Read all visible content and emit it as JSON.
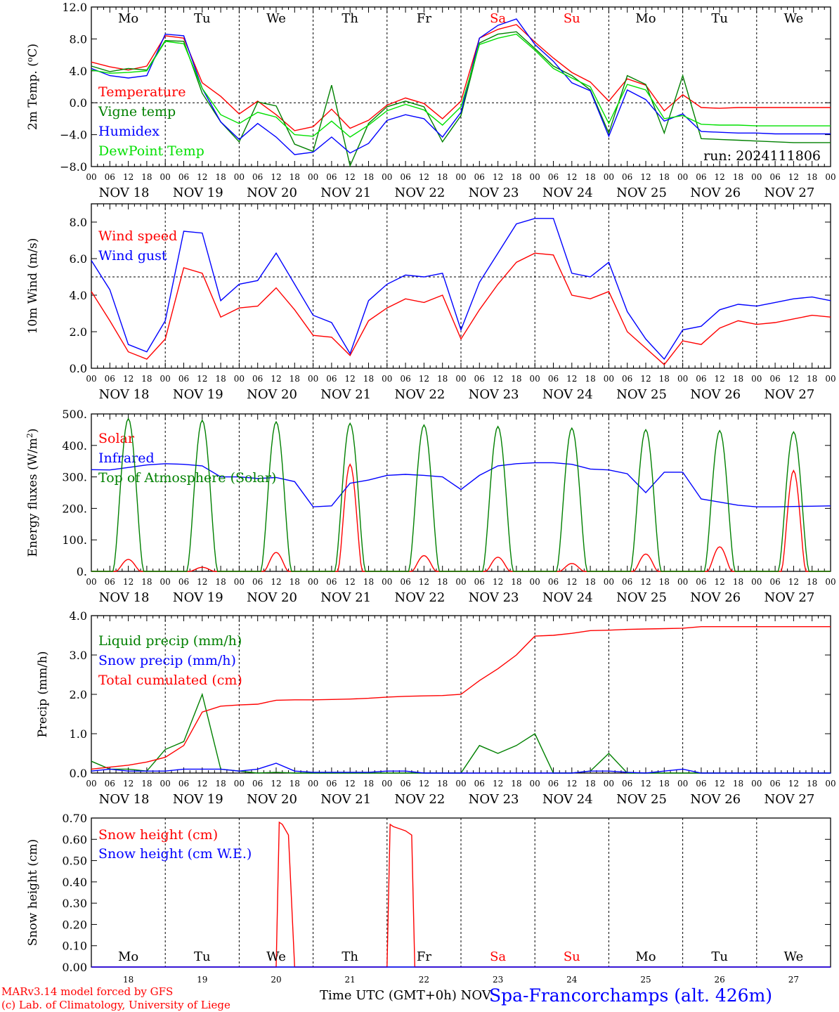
{
  "days": {
    "short": [
      "Mo",
      "Tu",
      "We",
      "Th",
      "Fr",
      "Sa",
      "Su",
      "Mo",
      "Tu",
      "We"
    ],
    "weekend_color": "#ff0000",
    "dates": [
      "NOV 18",
      "NOV 19",
      "NOV 20",
      "NOV 21",
      "NOV 22",
      "NOV 23",
      "NOV 24",
      "NOV 25",
      "NOV 26",
      "NOV 27"
    ],
    "hour_ticks": [
      "00",
      "06",
      "12",
      "18"
    ],
    "last_hour": "00",
    "bottom_numbers": [
      "18",
      "19",
      "20",
      "21",
      "22",
      "23",
      "24",
      "25",
      "26",
      "27"
    ]
  },
  "footer": {
    "credit_line1": "MARv3.14 model forced by GFS",
    "credit_line2": "(c) Lab. of Climatology, University of Liege",
    "xlabel": "Time UTC (GMT+0h)",
    "xlabel_suffix": "NOV",
    "station": "Spa-Francorchamps (alt. 426m)"
  },
  "colors": {
    "red": "#ff0000",
    "green": "#008000",
    "blue": "#0000ff",
    "lime": "#00e000"
  },
  "chart_data": [
    {
      "type": "line",
      "ylabel": "2m Temp. (°C)",
      "ylim": [
        -8,
        12
      ],
      "yticks": [
        "-8.0",
        "-4.0",
        "0.0",
        "4.0",
        "8.0",
        "12.0"
      ],
      "ref_line": 0,
      "annotation": "run: 2024111806",
      "x_hours": [
        0,
        6,
        12,
        18,
        24,
        30,
        36,
        42,
        48,
        54,
        60,
        66,
        72,
        78,
        84,
        90,
        96,
        102,
        108,
        114,
        120,
        126,
        132,
        138,
        144,
        150,
        156,
        162,
        168,
        174,
        180,
        186,
        192,
        198,
        204,
        210,
        216,
        222,
        228,
        234,
        240
      ],
      "series": [
        {
          "name": "Temperature",
          "color": "#ff0000",
          "values": [
            5.1,
            4.5,
            4.1,
            4.6,
            8.4,
            8.1,
            2.5,
            0.8,
            -1.4,
            0.2,
            -1.5,
            -3.5,
            -3.0,
            -0.8,
            -3.2,
            -2.2,
            -0.3,
            0.6,
            -0.1,
            -2.0,
            0.2,
            8.1,
            9.2,
            9.8,
            7.6,
            5.6,
            3.8,
            2.6,
            0.2,
            3.0,
            2.2,
            -1.0,
            1.0,
            -0.6,
            -0.7,
            -0.6,
            -0.6,
            -0.6,
            -0.6,
            -0.6,
            -0.6
          ]
        },
        {
          "name": "Vigne temp",
          "color": "#008000",
          "values": [
            4.6,
            3.9,
            4.3,
            4.1,
            7.8,
            7.7,
            1.2,
            -2.4,
            -4.9,
            0.1,
            -0.4,
            -5.2,
            -6.1,
            2.2,
            -7.9,
            -2.6,
            -0.5,
            0.2,
            -0.5,
            -4.9,
            -1.6,
            7.5,
            8.6,
            8.9,
            6.8,
            4.6,
            3.4,
            1.6,
            -3.8,
            3.4,
            2.3,
            -3.8,
            3.4,
            -4.5,
            -4.6,
            -4.7,
            -4.8,
            -4.9,
            -5.0,
            -5.0,
            -5.0
          ]
        },
        {
          "name": "Humidex",
          "color": "#0000ff",
          "values": [
            4.3,
            3.4,
            3.1,
            3.4,
            8.6,
            8.4,
            1.8,
            -2.4,
            -4.6,
            -2.6,
            -4.3,
            -6.5,
            -6.2,
            -4.3,
            -6.3,
            -5.1,
            -2.2,
            -1.5,
            -2.0,
            -4.3,
            -1.2,
            8.1,
            9.7,
            10.5,
            7.3,
            5.2,
            2.5,
            1.5,
            -4.2,
            1.6,
            0.4,
            -2.3,
            -1.4,
            -3.6,
            -3.7,
            -3.8,
            -3.8,
            -3.9,
            -3.9,
            -3.9,
            -3.9
          ]
        },
        {
          "name": "DewPoint Temp",
          "color": "#00e000",
          "values": [
            4.1,
            3.7,
            3.8,
            4.0,
            7.7,
            7.4,
            1.8,
            -1.5,
            -2.6,
            -1.2,
            -1.8,
            -4.0,
            -4.2,
            -2.3,
            -4.3,
            -2.8,
            -1.0,
            -0.2,
            -0.9,
            -2.8,
            -0.5,
            7.3,
            8.1,
            8.6,
            6.6,
            4.3,
            3.1,
            2.0,
            -2.6,
            2.3,
            1.6,
            -2.0,
            -1.6,
            -2.7,
            -2.8,
            -2.8,
            -2.9,
            -2.9,
            -2.9,
            -2.9,
            -2.9
          ]
        }
      ]
    },
    {
      "type": "line",
      "ylabel": "10m Wind (m/s)",
      "ylim": [
        0,
        9
      ],
      "yticks": [
        "0.0",
        "2.0",
        "4.0",
        "6.0",
        "8.0"
      ],
      "ref_line": 5,
      "x_hours": [
        0,
        6,
        12,
        18,
        24,
        30,
        36,
        42,
        48,
        54,
        60,
        66,
        72,
        78,
        84,
        90,
        96,
        102,
        108,
        114,
        120,
        126,
        132,
        138,
        144,
        150,
        156,
        162,
        168,
        174,
        180,
        186,
        192,
        198,
        204,
        210,
        216,
        222,
        228,
        234,
        240
      ],
      "series": [
        {
          "name": "Wind speed",
          "color": "#ff0000",
          "values": [
            4.2,
            2.6,
            0.9,
            0.5,
            1.6,
            5.5,
            5.2,
            2.8,
            3.3,
            3.4,
            4.4,
            3.2,
            1.8,
            1.7,
            0.7,
            2.6,
            3.3,
            3.8,
            3.6,
            4.0,
            1.6,
            3.2,
            4.6,
            5.8,
            6.3,
            6.2,
            4.0,
            3.8,
            4.2,
            2.0,
            1.1,
            0.2,
            1.5,
            1.3,
            2.2,
            2.6,
            2.4,
            2.5,
            2.7,
            2.9,
            2.8
          ]
        },
        {
          "name": "Wind gust",
          "color": "#0000ff",
          "values": [
            5.9,
            4.3,
            1.3,
            0.9,
            2.6,
            7.5,
            7.4,
            3.7,
            4.6,
            4.8,
            6.3,
            4.6,
            2.9,
            2.5,
            0.8,
            3.7,
            4.6,
            5.1,
            5.0,
            5.2,
            2.1,
            4.7,
            6.3,
            7.9,
            8.2,
            8.2,
            5.2,
            5.0,
            5.8,
            3.1,
            1.6,
            0.5,
            2.1,
            2.3,
            3.2,
            3.5,
            3.4,
            3.6,
            3.8,
            3.9,
            3.7
          ]
        }
      ]
    },
    {
      "type": "line",
      "ylabel": "Energy fluxes (W/m²)",
      "ylim": [
        0,
        500
      ],
      "yticks": [
        "0.",
        "100.",
        "200.",
        "300.",
        "400.",
        "500."
      ],
      "series": [
        {
          "name": "Solar",
          "color": "#ff0000",
          "day_peaks": [
            38,
            13,
            60,
            340,
            50,
            45,
            25,
            55,
            78,
            320
          ]
        },
        {
          "name": "Infrared",
          "color": "#0000ff",
          "x_hours": [
            0,
            6,
            12,
            18,
            24,
            30,
            36,
            42,
            48,
            54,
            60,
            66,
            72,
            78,
            84,
            90,
            96,
            102,
            108,
            114,
            120,
            126,
            132,
            138,
            144,
            150,
            156,
            162,
            168,
            174,
            180,
            186,
            192,
            198,
            204,
            210,
            216,
            222,
            228,
            234,
            240
          ],
          "values": [
            323,
            322,
            330,
            338,
            342,
            340,
            335,
            300,
            300,
            295,
            298,
            285,
            205,
            208,
            280,
            290,
            305,
            308,
            305,
            300,
            260,
            305,
            335,
            342,
            345,
            345,
            340,
            325,
            322,
            310,
            250,
            315,
            315,
            230,
            220,
            210,
            205,
            205,
            206,
            207,
            208
          ]
        },
        {
          "name": "Top of Atmosphere (Solar)",
          "color": "#008000",
          "day_peaks": [
            485,
            480,
            475,
            470,
            465,
            460,
            455,
            450,
            447,
            443
          ]
        }
      ]
    },
    {
      "type": "line",
      "ylabel": "Precip (mm/h)",
      "ylim": [
        0,
        4
      ],
      "yticks": [
        "0.0",
        "1.0",
        "2.0",
        "3.0",
        "4.0"
      ],
      "x_hours": [
        0,
        6,
        12,
        18,
        24,
        30,
        36,
        42,
        48,
        54,
        60,
        66,
        72,
        78,
        84,
        90,
        96,
        102,
        108,
        114,
        120,
        126,
        132,
        138,
        144,
        150,
        156,
        162,
        168,
        174,
        180,
        186,
        192,
        198,
        204,
        210,
        216,
        222,
        228,
        234,
        240
      ],
      "series": [
        {
          "name": "Liquid precip (mm/h)",
          "color": "#008000",
          "values": [
            0.3,
            0.1,
            0.1,
            0.05,
            0.6,
            0.8,
            2.0,
            0.1,
            0.05,
            0.0,
            0.02,
            0.0,
            0.0,
            0.0,
            0.0,
            0.0,
            0.0,
            0.0,
            0.0,
            0.0,
            0.0,
            0.7,
            0.5,
            0.7,
            1.0,
            0.0,
            0.0,
            0.05,
            0.5,
            0.0,
            0.0,
            0.0,
            0.0,
            0.0,
            0.0,
            0.0,
            0.0,
            0.0,
            0.0,
            0.0,
            0.0
          ]
        },
        {
          "name": "Snow precip (mm/h)",
          "color": "#0000ff",
          "values": [
            0.05,
            0.1,
            0.05,
            0.05,
            0.05,
            0.1,
            0.1,
            0.1,
            0.05,
            0.1,
            0.25,
            0.05,
            0.02,
            0.02,
            0.02,
            0.02,
            0.05,
            0.05,
            0.0,
            0.0,
            0.0,
            0.0,
            0.0,
            0.0,
            0.0,
            0.0,
            0.0,
            0.05,
            0.05,
            0.02,
            0.0,
            0.05,
            0.1,
            0.0,
            0.0,
            0.0,
            0.0,
            0.0,
            0.0,
            0.0,
            0.0
          ]
        },
        {
          "name": "Total cumulated (cm)",
          "color": "#ff0000",
          "values": [
            0.1,
            0.15,
            0.2,
            0.28,
            0.4,
            0.7,
            1.55,
            1.7,
            1.73,
            1.75,
            1.85,
            1.86,
            1.86,
            1.87,
            1.88,
            1.9,
            1.93,
            1.95,
            1.96,
            1.97,
            2.0,
            2.35,
            2.65,
            3.0,
            3.48,
            3.5,
            3.55,
            3.62,
            3.63,
            3.65,
            3.66,
            3.67,
            3.68,
            3.72,
            3.72,
            3.72,
            3.72,
            3.72,
            3.72,
            3.72,
            3.72
          ]
        }
      ]
    },
    {
      "type": "line",
      "ylabel": "Snow height (cm)",
      "ylim": [
        0,
        0.7
      ],
      "yticks": [
        "0.00",
        "0.10",
        "0.20",
        "0.30",
        "0.40",
        "0.50",
        "0.60",
        "0.70"
      ],
      "series": [
        {
          "name": "Snow height (cm)",
          "color": "#ff0000",
          "x_hours": [
            0,
            60,
            61,
            62,
            64,
            66,
            96,
            97,
            98,
            100,
            102,
            104,
            105,
            240
          ],
          "values": [
            0,
            0,
            0.68,
            0.67,
            0.62,
            0,
            0,
            0.67,
            0.66,
            0.65,
            0.64,
            0.62,
            0,
            0
          ]
        },
        {
          "name": "Snow height (cm W.E.)",
          "color": "#0000ff",
          "x_hours": [
            0,
            240
          ],
          "values": [
            0,
            0
          ]
        }
      ]
    }
  ]
}
